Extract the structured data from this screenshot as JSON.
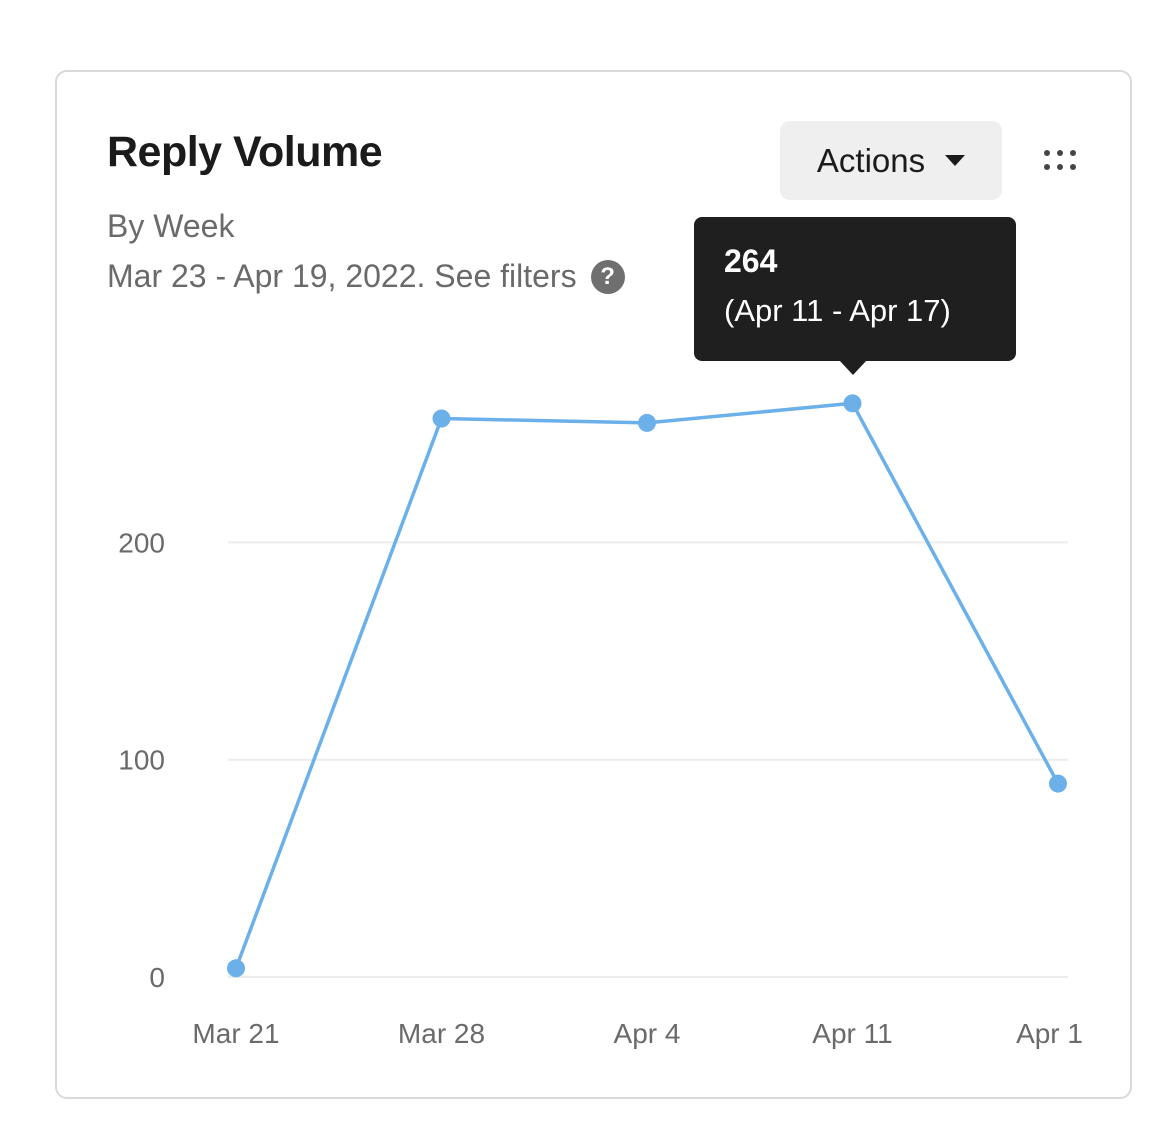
{
  "card": {
    "title": "Reply Volume",
    "subtitle": "By Week",
    "date_range": "Mar 23 - Apr 19, 2022. See filters",
    "help_icon": "?",
    "actions_label": "Actions",
    "menu_icon": "grip-dots-icon"
  },
  "tooltip": {
    "value": "264",
    "range": "(Apr 11 - Apr 17)"
  },
  "colors": {
    "line": "#6cb0ea",
    "grid": "#ececec"
  },
  "chart_data": {
    "type": "line",
    "title": "Reply Volume",
    "subtitle": "By Week",
    "categories": [
      "Mar 21",
      "Mar 28",
      "Apr 4",
      "Apr 11",
      "Apr 1"
    ],
    "values": [
      4,
      257,
      255,
      264,
      89
    ],
    "yticks": [
      0,
      100,
      200
    ],
    "ylim": [
      0,
      280
    ],
    "grid": true,
    "xlabel": "",
    "ylabel": ""
  }
}
